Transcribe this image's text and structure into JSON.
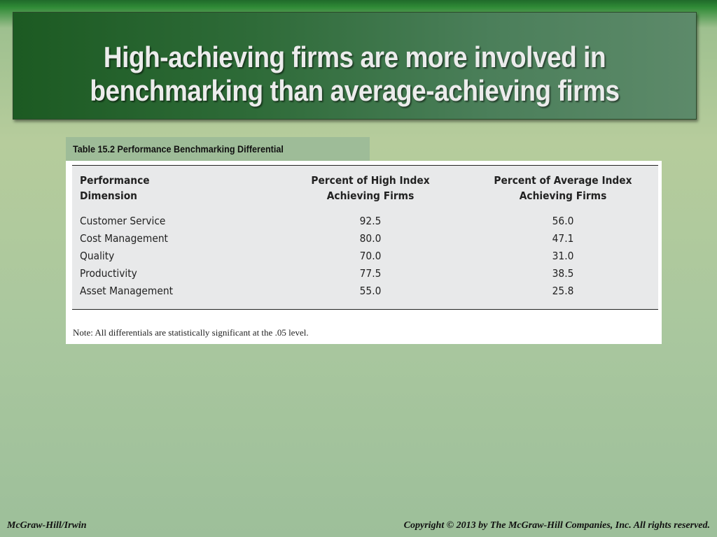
{
  "slide": {
    "title_line1": "High-achieving firms are more involved in",
    "title_line2": "benchmarking than average-achieving firms"
  },
  "table": {
    "caption": "Table 15.2 Performance Benchmarking Differential",
    "headers": [
      {
        "line1": "Performance",
        "line2": "Dimension"
      },
      {
        "line1": "Percent of High Index",
        "line2": "Achieving Firms"
      },
      {
        "line1": "Percent of Average Index",
        "line2": "Achieving Firms"
      }
    ],
    "rows": [
      {
        "dimension": "Customer Service",
        "high": "92.5",
        "average": "56.0"
      },
      {
        "dimension": "Cost Management",
        "high": "80.0",
        "average": "47.1"
      },
      {
        "dimension": "Quality",
        "high": "70.0",
        "average": "31.0"
      },
      {
        "dimension": "Productivity",
        "high": "77.5",
        "average": "38.5"
      },
      {
        "dimension": "Asset Management",
        "high": "55.0",
        "average": "25.8"
      }
    ],
    "note": "Note: All differentials are statistically significant at the .05 level."
  },
  "footer": {
    "left": "McGraw-Hill/Irwin",
    "right": "Copyright © 2013 by The McGraw-Hill Companies, Inc. All rights reserved."
  }
}
